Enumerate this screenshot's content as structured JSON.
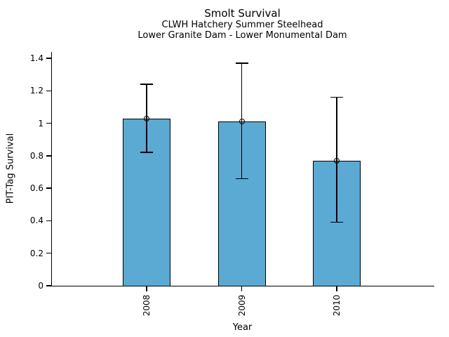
{
  "chart_data": {
    "type": "bar",
    "title": "Smolt Survival",
    "subtitle": [
      "CLWH Hatchery Summer Steelhead",
      "Lower Granite Dam - Lower Monumental Dam"
    ],
    "xlabel": "Year",
    "ylabel": "PIT-Tag Survival",
    "categories": [
      "2008",
      "2009",
      "2010"
    ],
    "values": [
      1.03,
      1.01,
      0.77
    ],
    "error_upper": [
      1.24,
      1.37,
      1.16
    ],
    "error_lower": [
      0.82,
      0.66,
      0.39
    ],
    "ylim": [
      0,
      1.44
    ],
    "yticks": [
      0,
      0.2,
      0.4,
      0.6,
      0.8,
      1,
      1.2,
      1.4
    ],
    "ytick_labels": [
      "0",
      "0.2",
      "0.4",
      "0.6",
      "0.8",
      "1",
      "1.2",
      "1.4"
    ],
    "grid": false,
    "legend": null,
    "bar_color": "#5aaad4",
    "edge_color": "#000000",
    "marker": "open-circle"
  }
}
